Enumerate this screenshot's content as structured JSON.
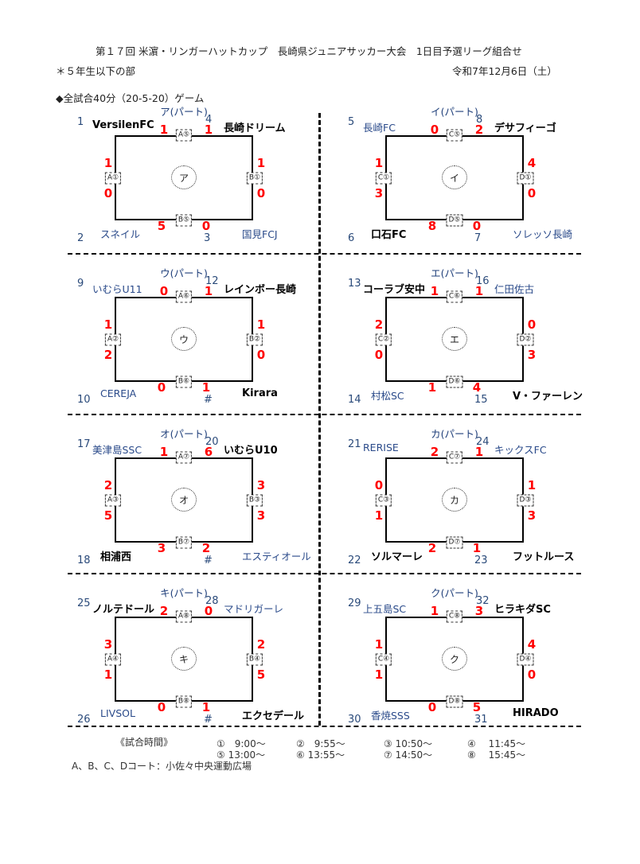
{
  "header": {
    "title": "第１７回 米濵・リンガーハットカップ　長崎県ジュニアサッカー大会　1日目予選リーグ組合せ",
    "division": "＊５年生以下の部",
    "date": "令和7年12月6日（土）",
    "format": "◆全試合40分（20-5-20）ゲーム"
  },
  "groups": [
    {
      "title": "ア(パート)",
      "label": "ア",
      "tl": {
        "num": "1",
        "name": "VersilenFC",
        "bold": true
      },
      "tr": {
        "num": "4",
        "name": "長崎ドリーム",
        "bold": true
      },
      "bl": {
        "num": "2",
        "name": "スネイル",
        "bold": false
      },
      "br": {
        "num": "3",
        "name": "国見FCJ",
        "bold": false
      },
      "top": {
        "court": "A⑤",
        "a": "1",
        "b": "1"
      },
      "left": {
        "court": "A①",
        "a": "1",
        "b": "0"
      },
      "right": {
        "court": "B①",
        "a": "1",
        "b": "0"
      },
      "bottom": {
        "court": "B⑤",
        "a": "5",
        "b": "0"
      }
    },
    {
      "title": "イ(パート)",
      "label": "イ",
      "tl": {
        "num": "5",
        "name": "長崎FC",
        "bold": false
      },
      "tr": {
        "num": "8",
        "name": "デサフィーゴ",
        "bold": true
      },
      "bl": {
        "num": "6",
        "name": "口石FC",
        "bold": true
      },
      "br": {
        "num": "7",
        "name": "ソレッソ長崎",
        "bold": false
      },
      "top": {
        "court": "C⑤",
        "a": "0",
        "b": "2"
      },
      "left": {
        "court": "C①",
        "a": "1",
        "b": "3"
      },
      "right": {
        "court": "D①",
        "a": "4",
        "b": "0"
      },
      "bottom": {
        "court": "D⑤",
        "a": "8",
        "b": "0"
      }
    },
    {
      "title": "ウ(パート)",
      "label": "ウ",
      "tl": {
        "num": "9",
        "name": "いむらU11",
        "bold": false
      },
      "tr": {
        "num": "12",
        "name": "レインボー長崎",
        "bold": true
      },
      "bl": {
        "num": "10",
        "name": "CEREJA",
        "bold": false
      },
      "br": {
        "num": "#",
        "name": "Kirara",
        "bold": true
      },
      "top": {
        "court": "A⑥",
        "a": "0",
        "b": "1"
      },
      "left": {
        "court": "A②",
        "a": "1",
        "b": "2"
      },
      "right": {
        "court": "B②",
        "a": "1",
        "b": "0"
      },
      "bottom": {
        "court": "B⑥",
        "a": "0",
        "b": "1"
      }
    },
    {
      "title": "エ(パート)",
      "label": "エ",
      "tl": {
        "num": "13",
        "name": "コーラブ安中",
        "bold": true
      },
      "tr": {
        "num": "16",
        "name": "仁田佐古",
        "bold": false
      },
      "bl": {
        "num": "14",
        "name": "村松SC",
        "bold": false
      },
      "br": {
        "num": "15",
        "name": "V・ファーレン",
        "bold": true
      },
      "top": {
        "court": "C⑥",
        "a": "1",
        "b": "1"
      },
      "left": {
        "court": "C②",
        "a": "2",
        "b": "0"
      },
      "right": {
        "court": "D②",
        "a": "0",
        "b": "3"
      },
      "bottom": {
        "court": "D⑥",
        "a": "1",
        "b": "4"
      }
    },
    {
      "title": "オ(パート)",
      "label": "オ",
      "tl": {
        "num": "17",
        "name": "美津島SSC",
        "bold": false
      },
      "tr": {
        "num": "20",
        "name": "いむらU10",
        "bold": true
      },
      "bl": {
        "num": "18",
        "name": "相浦西",
        "bold": true
      },
      "br": {
        "num": "#",
        "name": "エスティオール",
        "bold": false
      },
      "top": {
        "court": "A⑦",
        "a": "1",
        "b": "6"
      },
      "left": {
        "court": "A③",
        "a": "2",
        "b": "5"
      },
      "right": {
        "court": "B③",
        "a": "3",
        "b": "3"
      },
      "bottom": {
        "court": "B⑦",
        "a": "3",
        "b": "2"
      }
    },
    {
      "title": "カ(パート)",
      "label": "カ",
      "tl": {
        "num": "21",
        "name": "RERISE",
        "bold": false
      },
      "tr": {
        "num": "24",
        "name": "キックスFC",
        "bold": false
      },
      "bl": {
        "num": "22",
        "name": "ソルマーレ",
        "bold": true
      },
      "br": {
        "num": "23",
        "name": "フットルース",
        "bold": true
      },
      "top": {
        "court": "C⑦",
        "a": "2",
        "b": "1"
      },
      "left": {
        "court": "C③",
        "a": "0",
        "b": "1"
      },
      "right": {
        "court": "D③",
        "a": "1",
        "b": "3"
      },
      "bottom": {
        "court": "D⑦",
        "a": "2",
        "b": "1"
      }
    },
    {
      "title": "キ(パート)",
      "label": "キ",
      "tl": {
        "num": "25",
        "name": "ノルテドール",
        "bold": true
      },
      "tr": {
        "num": "28",
        "name": "マドリガーレ",
        "bold": false
      },
      "bl": {
        "num": "26",
        "name": "LIVSOL",
        "bold": false
      },
      "br": {
        "num": "#",
        "name": "エクセデール",
        "bold": true
      },
      "top": {
        "court": "A⑧",
        "a": "2",
        "b": "0"
      },
      "left": {
        "court": "A④",
        "a": "3",
        "b": "1"
      },
      "right": {
        "court": "B④",
        "a": "2",
        "b": "5"
      },
      "bottom": {
        "court": "B⑧",
        "a": "0",
        "b": "1"
      }
    },
    {
      "title": "ク(パート)",
      "label": "ク",
      "tl": {
        "num": "29",
        "name": "上五島SC",
        "bold": false
      },
      "tr": {
        "num": "32",
        "name": "ヒラキダSC",
        "bold": true
      },
      "bl": {
        "num": "30",
        "name": "香焼SSS",
        "bold": false
      },
      "br": {
        "num": "31",
        "name": "HIRADO",
        "bold": true
      },
      "top": {
        "court": "C⑧",
        "a": "1",
        "b": "3"
      },
      "left": {
        "court": "C④",
        "a": "1",
        "b": "1"
      },
      "right": {
        "court": "D④",
        "a": "4",
        "b": "0"
      },
      "bottom": {
        "court": "D⑧",
        "a": "0",
        "b": "5"
      }
    }
  ],
  "schedule": {
    "label": "《試合時間》",
    "times": [
      "①　9:00～",
      "②　9:55～",
      "③ 10:50～",
      "④　 11:45～",
      "⑤ 13:00～",
      "⑥ 13:55～",
      "⑦ 14:50～",
      "⑧　 15:45～"
    ],
    "venue": "A、B、C、Dコート：小佐々中央運動広場"
  }
}
